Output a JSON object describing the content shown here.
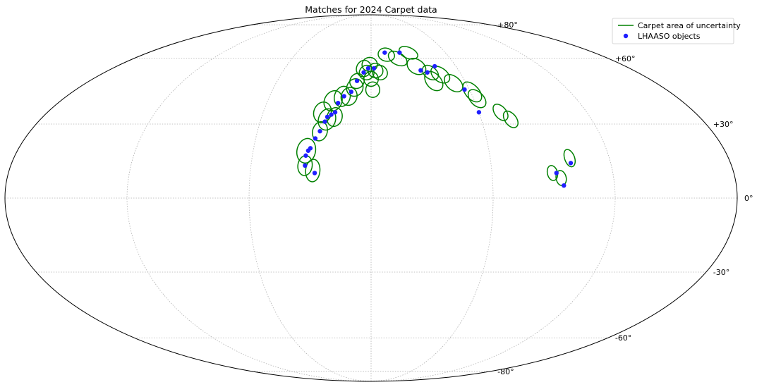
{
  "chart_data": {
    "type": "scatter",
    "projection": "mollweide",
    "title": "Matches for 2024 Carpet data",
    "grid": true,
    "legend_position": "top-right",
    "y_ticks": [
      {
        "value": 80,
        "label": "+80°"
      },
      {
        "value": 60,
        "label": "+60°"
      },
      {
        "value": 30,
        "label": "+30°"
      },
      {
        "value": 0,
        "label": "0°"
      },
      {
        "value": -30,
        "label": "-30°"
      },
      {
        "value": -60,
        "label": "-60°"
      },
      {
        "value": -80,
        "label": "-80°"
      }
    ],
    "x_grid_lines": [
      -120,
      -60,
      0,
      60,
      120
    ],
    "series": [
      {
        "name": "Carpet area of uncertainty",
        "kind": "ellipse",
        "color": "#008000",
        "ellipses": [
          {
            "lon": -33,
            "lat": 19,
            "a": 4.5,
            "b": 5.0,
            "angle": 0
          },
          {
            "lon": -33,
            "lat": 13,
            "a": 3.5,
            "b": 4.0,
            "angle": 0
          },
          {
            "lon": -29,
            "lat": 11,
            "a": 3.5,
            "b": 4.5,
            "angle": 0
          },
          {
            "lon": -27,
            "lat": 27,
            "a": 3.5,
            "b": 4.0,
            "angle": 0
          },
          {
            "lon": -27,
            "lat": 35,
            "a": 4.0,
            "b": 4.5,
            "angle": 20
          },
          {
            "lon": -24,
            "lat": 32,
            "a": 4.0,
            "b": 4.5,
            "angle": 0
          },
          {
            "lon": -20,
            "lat": 33,
            "a": 3.5,
            "b": 4.0,
            "angle": 0
          },
          {
            "lon": -22,
            "lat": 40,
            "a": 4.0,
            "b": 4.5,
            "angle": 0
          },
          {
            "lon": -17,
            "lat": 42,
            "a": 3.5,
            "b": 4.5,
            "angle": 0
          },
          {
            "lon": -13,
            "lat": 42,
            "a": 3.5,
            "b": 4.0,
            "angle": 0
          },
          {
            "lon": -9,
            "lat": 49,
            "a": 3.0,
            "b": 3.5,
            "angle": 0
          },
          {
            "lon": -10,
            "lat": 46,
            "a": 3.5,
            "b": 4.0,
            "angle": 0
          },
          {
            "lon": -5,
            "lat": 55,
            "a": 3.0,
            "b": 4.0,
            "angle": 0
          },
          {
            "lon": -3,
            "lat": 53,
            "a": 3.0,
            "b": 3.5,
            "angle": 0
          },
          {
            "lon": -1,
            "lat": 57,
            "a": 3.0,
            "b": 3.5,
            "angle": 0
          },
          {
            "lon": 3,
            "lat": 54,
            "a": 3.0,
            "b": 3.5,
            "angle": 0
          },
          {
            "lon": 0,
            "lat": 50,
            "a": 3.0,
            "b": 3.5,
            "angle": 0
          },
          {
            "lon": 1,
            "lat": 45,
            "a": 3.0,
            "b": 3.5,
            "angle": 0
          },
          {
            "lon": 6,
            "lat": 53,
            "a": 3.0,
            "b": 3.5,
            "angle": 0
          },
          {
            "lon": 12,
            "lat": 62,
            "a": 3.0,
            "b": 3.5,
            "angle": 0
          },
          {
            "lon": 20,
            "lat": 60,
            "a": 3.0,
            "b": 4.0,
            "angle": 30
          },
          {
            "lon": 30,
            "lat": 63,
            "a": 3.0,
            "b": 3.5,
            "angle": 30
          },
          {
            "lon": 32,
            "lat": 56,
            "a": 3.5,
            "b": 4.0,
            "angle": 0
          },
          {
            "lon": 40,
            "lat": 49,
            "a": 3.5,
            "b": 4.5,
            "angle": 0
          },
          {
            "lon": 40,
            "lat": 53,
            "a": 3.0,
            "b": 3.5,
            "angle": 0
          },
          {
            "lon": 46,
            "lat": 52,
            "a": 3.5,
            "b": 4.0,
            "angle": 0
          },
          {
            "lon": 52,
            "lat": 48,
            "a": 3.5,
            "b": 4.0,
            "angle": 0
          },
          {
            "lon": 61,
            "lat": 44,
            "a": 3.5,
            "b": 4.5,
            "angle": 0
          },
          {
            "lon": 62,
            "lat": 41,
            "a": 3.5,
            "b": 4.0,
            "angle": 0
          },
          {
            "lon": 72,
            "lat": 35,
            "a": 3.0,
            "b": 3.5,
            "angle": 0
          },
          {
            "lon": 76,
            "lat": 32,
            "a": 3.0,
            "b": 3.5,
            "angle": 0
          },
          {
            "lon": 100,
            "lat": 16,
            "a": 2.5,
            "b": 3.5,
            "angle": 0
          },
          {
            "lon": 90,
            "lat": 10,
            "a": 2.5,
            "b": 3.0,
            "angle": 0
          },
          {
            "lon": 94,
            "lat": 8,
            "a": 2.5,
            "b": 3.0,
            "angle": 0
          }
        ]
      },
      {
        "name": "LHAASO objects",
        "kind": "point",
        "color": "#1f1fff",
        "points": [
          {
            "lon": -32,
            "lat": 19
          },
          {
            "lon": -33,
            "lat": 17
          },
          {
            "lon": -33,
            "lat": 13
          },
          {
            "lon": -31,
            "lat": 20
          },
          {
            "lon": -28,
            "lat": 10
          },
          {
            "lon": -29,
            "lat": 24
          },
          {
            "lon": -27,
            "lat": 27
          },
          {
            "lon": -25,
            "lat": 31
          },
          {
            "lon": -24,
            "lat": 33
          },
          {
            "lon": -20,
            "lat": 35
          },
          {
            "lon": -19,
            "lat": 39
          },
          {
            "lon": -16,
            "lat": 42
          },
          {
            "lon": -12,
            "lat": 44
          },
          {
            "lon": -9,
            "lat": 49
          },
          {
            "lon": -5,
            "lat": 53
          },
          {
            "lon": -2,
            "lat": 55
          },
          {
            "lon": 2,
            "lat": 55
          },
          {
            "lon": 11,
            "lat": 63
          },
          {
            "lon": 23,
            "lat": 63
          },
          {
            "lon": 34,
            "lat": 54
          },
          {
            "lon": 38,
            "lat": 53
          },
          {
            "lon": 45,
            "lat": 56
          },
          {
            "lon": 57,
            "lat": 45
          },
          {
            "lon": 60,
            "lat": 35
          },
          {
            "lon": 92,
            "lat": 10
          },
          {
            "lon": 95,
            "lat": 5
          },
          {
            "lon": 100,
            "lat": 14
          },
          {
            "lon": -22,
            "lat": 34
          }
        ]
      }
    ]
  }
}
